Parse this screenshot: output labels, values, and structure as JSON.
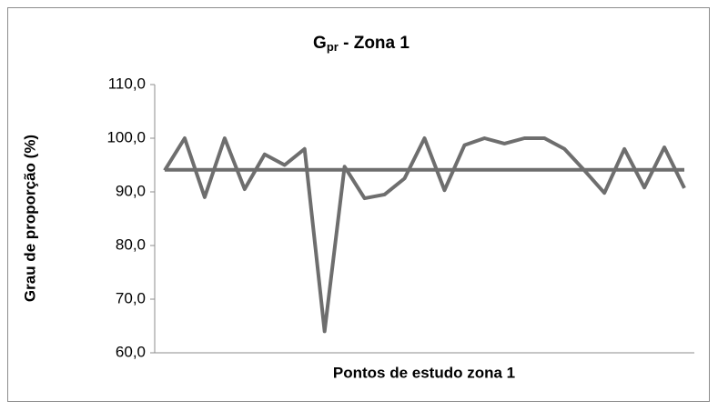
{
  "chart_data": {
    "type": "line",
    "title": {
      "base": "G",
      "subscript": "pr",
      "rest": " - Zona 1"
    },
    "x_label": "Pontos de estudo zona 1",
    "y_label": "Grau de proporção (%)",
    "categories": [
      null,
      null,
      null,
      null,
      null,
      null,
      null,
      null,
      null,
      null,
      null,
      null,
      null,
      null,
      null,
      null,
      null,
      null,
      null,
      null,
      null,
      null,
      null,
      null,
      null,
      null,
      null
    ],
    "series": [
      {
        "color": "#6e6e6e",
        "values": [
          94,
          100,
          89,
          100,
          90.5,
          97,
          95,
          98,
          64,
          94.7,
          88.8,
          89.5,
          92.5,
          100,
          90.3,
          98.7,
          100,
          99,
          100,
          100,
          98,
          94,
          89.8,
          98,
          90.8,
          98.3,
          90.7
        ]
      },
      {
        "color": "#6e6e6e",
        "values": [
          94.1,
          94.1,
          94.1,
          94.1,
          94.1,
          94.1,
          94.1,
          94.1,
          94.1,
          94.1,
          94.1,
          94.1,
          94.1,
          94.1,
          94.1,
          94.1,
          94.1,
          94.1,
          94.1,
          94.1,
          94.1,
          94.1,
          94.1,
          94.1,
          94.1,
          94.1,
          94.1
        ]
      }
    ],
    "ylim": [
      60,
      110
    ],
    "yticks": [
      {
        "value": 60,
        "label": "60,0"
      },
      {
        "value": 70,
        "label": "70,0"
      },
      {
        "value": 80,
        "label": "80,0"
      },
      {
        "value": 90,
        "label": "90,0"
      },
      {
        "value": 100,
        "label": "100,0"
      },
      {
        "value": 110,
        "label": "110,0"
      }
    ],
    "grid": false
  }
}
